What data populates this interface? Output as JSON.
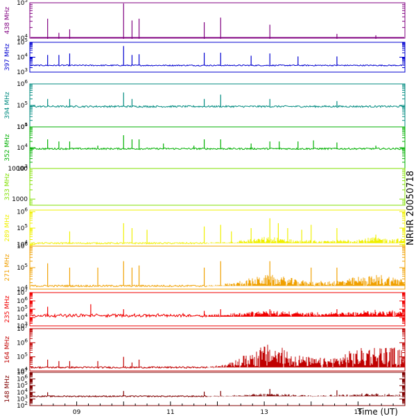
{
  "chart_data": {
    "type": "line",
    "side_title": "NRHR 20050718",
    "xlabel": "Time (UT)",
    "xlim": [
      8.0,
      16.0
    ],
    "x_ticks": [
      {
        "value": 9,
        "label": "09"
      },
      {
        "value": 11,
        "label": "11"
      },
      {
        "value": 13,
        "label": "13"
      },
      {
        "value": 15,
        "label": "15"
      }
    ],
    "panels": [
      {
        "label": "438 MHz",
        "color": "#800080",
        "ylim_log": [
          4,
          5
        ],
        "tick_labels": [
          {
            "exp": 5,
            "text": "10",
            "sup": "5"
          },
          {
            "exp": 4,
            "text": "10",
            "sup": "4"
          }
        ],
        "baseline_log": 3.98,
        "spikes": [
          [
            8.38,
            4.55
          ],
          [
            8.62,
            4.15
          ],
          [
            8.85,
            4.25
          ],
          [
            10.0,
            5.0
          ],
          [
            10.18,
            4.5
          ],
          [
            10.33,
            4.55
          ],
          [
            11.72,
            4.45
          ],
          [
            12.07,
            4.58
          ],
          [
            13.12,
            4.38
          ],
          [
            14.55,
            4.12
          ],
          [
            15.38,
            4.08
          ]
        ]
      },
      {
        "label": "397 MHz",
        "color": "#0000d0",
        "ylim_log": [
          3,
          5
        ],
        "tick_labels": [
          {
            "exp": 5,
            "text": "10",
            "sup": "5"
          },
          {
            "exp": 4,
            "text": "10",
            "sup": "4"
          },
          {
            "exp": 3,
            "text": "10",
            "sup": "3"
          }
        ],
        "baseline_log": 3.45,
        "spikes": [
          [
            8.38,
            4.15
          ],
          [
            8.62,
            4.15
          ],
          [
            8.85,
            4.25
          ],
          [
            10.0,
            4.75
          ],
          [
            10.18,
            4.15
          ],
          [
            10.33,
            4.2
          ],
          [
            11.72,
            4.3
          ],
          [
            12.07,
            4.3
          ],
          [
            12.72,
            4.1
          ],
          [
            13.12,
            4.25
          ],
          [
            13.72,
            4.05
          ],
          [
            14.55,
            4.05
          ]
        ]
      },
      {
        "label": "394 MHz",
        "color": "#008b80",
        "ylim_log": [
          4,
          6
        ],
        "tick_labels": [
          {
            "exp": 6,
            "text": "10",
            "sup": "6"
          },
          {
            "exp": 5,
            "text": "10",
            "sup": "5"
          },
          {
            "exp": 4,
            "text": "10",
            "sup": "4"
          }
        ],
        "baseline_log": 4.95,
        "spikes": [
          [
            8.38,
            5.3
          ],
          [
            8.85,
            5.3
          ],
          [
            10.0,
            5.6
          ],
          [
            10.18,
            5.3
          ],
          [
            11.72,
            5.3
          ],
          [
            12.07,
            5.5
          ],
          [
            13.12,
            5.3
          ],
          [
            14.55,
            5.2
          ]
        ]
      },
      {
        "label": "352 MHz",
        "color": "#00b000",
        "ylim_log": [
          3,
          5
        ],
        "tick_labels": [
          {
            "exp": 5,
            "text": "10",
            "sup": "5"
          },
          {
            "exp": 4,
            "text": "10",
            "sup": "4"
          },
          {
            "exp": 3,
            "text": "10",
            "sup": "3"
          }
        ],
        "baseline_log": 3.95,
        "spikes": [
          [
            8.38,
            4.4
          ],
          [
            8.62,
            4.3
          ],
          [
            8.85,
            4.3
          ],
          [
            9.45,
            4.1
          ],
          [
            10.0,
            4.6
          ],
          [
            10.18,
            4.4
          ],
          [
            10.33,
            4.4
          ],
          [
            10.85,
            4.2
          ],
          [
            11.5,
            4.1
          ],
          [
            11.72,
            4.4
          ],
          [
            12.07,
            4.4
          ],
          [
            12.72,
            4.2
          ],
          [
            13.12,
            4.3
          ],
          [
            13.32,
            4.3
          ],
          [
            13.72,
            4.3
          ],
          [
            14.05,
            4.35
          ],
          [
            14.55,
            4.25
          ],
          [
            15.38,
            4.1
          ]
        ]
      },
      {
        "label": "333 MHz",
        "color": "#80e000",
        "ylim_log": [
          2.8,
          4.0
        ],
        "tick_labels": [
          {
            "exp": 4,
            "text": "10000",
            "sup": ""
          },
          {
            "exp": 3,
            "text": "1000",
            "sup": ""
          }
        ],
        "baseline_log": null,
        "spikes": []
      },
      {
        "label": "289 MHz",
        "color": "#f0f000",
        "ylim_log": [
          3.9,
          6.1
        ],
        "tick_labels": [
          {
            "exp": 6,
            "text": "10",
            "sup": "6"
          },
          {
            "exp": 5,
            "text": "10",
            "sup": "5"
          },
          {
            "exp": 4,
            "text": "10",
            "sup": "4"
          }
        ],
        "baseline_log": 4.08,
        "spikes": [
          [
            8.85,
            4.8
          ],
          [
            10.0,
            5.3
          ],
          [
            10.18,
            5.0
          ],
          [
            10.5,
            4.9
          ],
          [
            11.72,
            5.1
          ],
          [
            12.07,
            5.2
          ],
          [
            12.3,
            4.8
          ],
          [
            12.72,
            5.0
          ],
          [
            13.12,
            5.6
          ],
          [
            13.3,
            5.3
          ],
          [
            13.5,
            5.0
          ],
          [
            13.8,
            4.9
          ],
          [
            14.0,
            5.2
          ],
          [
            14.55,
            5.0
          ],
          [
            15.38,
            4.6
          ]
        ]
      },
      {
        "label": "271 MHz",
        "color": "#f0a000",
        "ylim_log": [
          4,
          6
        ],
        "tick_labels": [
          {
            "exp": 6,
            "text": "10",
            "sup": "6"
          },
          {
            "exp": 5,
            "text": "10",
            "sup": "5"
          },
          {
            "exp": 4,
            "text": "10",
            "sup": "4"
          }
        ],
        "baseline_log": 4.15,
        "spikes": [
          [
            8.38,
            5.2
          ],
          [
            8.85,
            5.0
          ],
          [
            9.45,
            5.0
          ],
          [
            10.0,
            5.3
          ],
          [
            10.18,
            5.0
          ],
          [
            10.33,
            5.1
          ],
          [
            11.72,
            5.0
          ],
          [
            12.07,
            5.3
          ],
          [
            13.12,
            5.3
          ],
          [
            14.0,
            5.0
          ],
          [
            14.55,
            5.0
          ]
        ]
      },
      {
        "label": "235 MHz",
        "color": "#f00000",
        "ylim_log": [
          3,
          7
        ],
        "tick_labels": [
          {
            "exp": 7,
            "text": "10",
            "sup": "7"
          },
          {
            "exp": 6,
            "text": "10",
            "sup": "6"
          },
          {
            "exp": 5,
            "text": "10",
            "sup": "5"
          },
          {
            "exp": 4,
            "text": "10",
            "sup": "4"
          },
          {
            "exp": 3,
            "text": "10",
            "sup": "3"
          }
        ],
        "baseline_log": 4.1,
        "spikes": [
          [
            8.38,
            5.3
          ],
          [
            9.3,
            5.6
          ],
          [
            10.0,
            5.0
          ],
          [
            11.72,
            4.8
          ],
          [
            12.07,
            5.0
          ],
          [
            13.12,
            5.0
          ],
          [
            14.55,
            5.0
          ]
        ]
      },
      {
        "label": "164 MHz",
        "color": "#c00000",
        "ylim_log": [
          4,
          7
        ],
        "tick_labels": [
          {
            "exp": 7,
            "text": "10",
            "sup": "7"
          },
          {
            "exp": 6,
            "text": "10",
            "sup": "6"
          },
          {
            "exp": 5,
            "text": "10",
            "sup": "5"
          },
          {
            "exp": 4,
            "text": "10",
            "sup": "4"
          }
        ],
        "baseline_log": 4.25,
        "spikes": [
          [
            8.38,
            4.8
          ],
          [
            8.62,
            4.7
          ],
          [
            8.85,
            4.7
          ],
          [
            9.45,
            4.7
          ],
          [
            10.0,
            5.0
          ],
          [
            10.18,
            4.6
          ],
          [
            10.33,
            4.8
          ]
        ]
      },
      {
        "label": "148 MHz",
        "color": "#800000",
        "ylim_log": [
          2,
          7
        ],
        "tick_labels": [
          {
            "exp": 7,
            "text": "10",
            "sup": "7"
          },
          {
            "exp": 6,
            "text": "10",
            "sup": "6"
          },
          {
            "exp": 5,
            "text": "10",
            "sup": "5"
          },
          {
            "exp": 4,
            "text": "10",
            "sup": "4"
          },
          {
            "exp": 3,
            "text": "10",
            "sup": "3"
          },
          {
            "exp": 2,
            "text": "10",
            "sup": "2"
          }
        ],
        "baseline_log": 3.4,
        "spikes": [
          [
            8.38,
            4.0
          ],
          [
            10.0,
            4.2
          ],
          [
            11.72,
            4.1
          ],
          [
            12.07,
            4.2
          ],
          [
            13.12,
            4.5
          ],
          [
            14.55,
            4.3
          ]
        ]
      }
    ]
  }
}
